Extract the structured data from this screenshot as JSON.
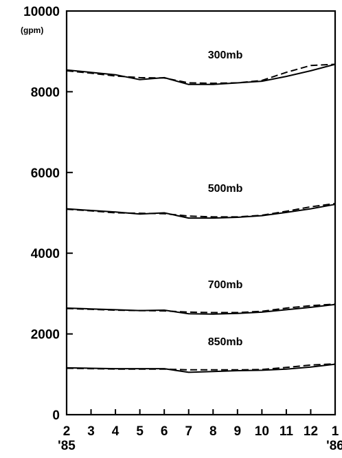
{
  "chart_data": {
    "type": "line",
    "title": "",
    "xlabel": "",
    "ylabel": "",
    "y_unit": "(gpm)",
    "ylim": [
      0,
      10000
    ],
    "y_ticks": [
      "0",
      "2000",
      "4000",
      "6000",
      "8000",
      "10000"
    ],
    "y_tick_values": [
      0,
      2000,
      4000,
      6000,
      8000,
      10000
    ],
    "x": [
      2,
      3,
      4,
      5,
      6,
      7,
      8,
      9,
      10,
      11,
      12,
      13
    ],
    "x_tick_labels": [
      "2",
      "3",
      "4",
      "5",
      "6",
      "7",
      "8",
      "9",
      "10",
      "11",
      "12",
      "1"
    ],
    "x_year_labels": [
      "'85",
      "'86"
    ],
    "line_styles": [
      "solid",
      "dashed"
    ],
    "levels": [
      {
        "label": "300mb",
        "solid": [
          8540,
          8480,
          8420,
          8300,
          8350,
          8180,
          8180,
          8220,
          8260,
          8380,
          8520,
          8680
        ],
        "dashed": [
          8520,
          8460,
          8390,
          8350,
          8340,
          8220,
          8210,
          8220,
          8280,
          8480,
          8650,
          8680
        ]
      },
      {
        "label": "500mb",
        "solid": [
          5100,
          5060,
          5020,
          4970,
          5000,
          4870,
          4870,
          4890,
          4930,
          5010,
          5100,
          5210
        ],
        "dashed": [
          5090,
          5050,
          5000,
          4990,
          4980,
          4920,
          4900,
          4900,
          4940,
          5040,
          5150,
          5230
        ]
      },
      {
        "label": "700mb",
        "solid": [
          2640,
          2620,
          2600,
          2580,
          2590,
          2500,
          2490,
          2510,
          2540,
          2600,
          2660,
          2730
        ],
        "dashed": [
          2630,
          2610,
          2590,
          2580,
          2570,
          2540,
          2530,
          2530,
          2560,
          2640,
          2700,
          2740
        ]
      },
      {
        "label": "850mb",
        "solid": [
          1160,
          1150,
          1140,
          1140,
          1140,
          1050,
          1070,
          1090,
          1100,
          1130,
          1180,
          1250
        ],
        "dashed": [
          1150,
          1140,
          1130,
          1130,
          1130,
          1110,
          1110,
          1110,
          1120,
          1170,
          1230,
          1260
        ]
      }
    ],
    "grid": false,
    "legend": "none"
  }
}
